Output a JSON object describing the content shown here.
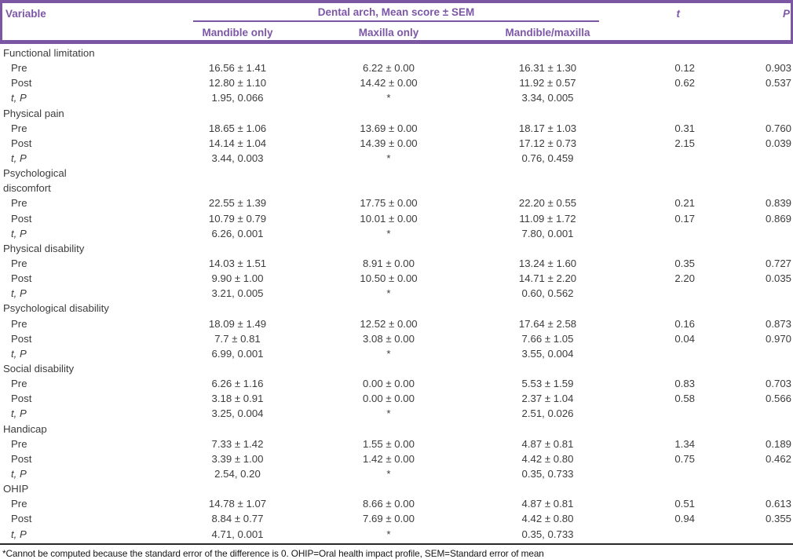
{
  "colors": {
    "accent_purple": "#7b56a2",
    "header_text_purple": "#7d57a7",
    "body_text": "#3c3c3c",
    "footnote_rule": "#2a2a2a"
  },
  "table": {
    "header": {
      "variable": "Variable",
      "span": "Dental arch, Mean score ± SEM",
      "subcols": [
        "Mandible only",
        "Maxilla only",
        "Mandible/maxilla"
      ],
      "t": "t",
      "p": "P"
    },
    "row_labels": {
      "pre": "Pre",
      "post": "Post",
      "tp": "t, P"
    },
    "sections": [
      {
        "label_lines": [
          "Functional limitation"
        ],
        "pre": [
          "16.56 ± 1.41",
          "6.22 ± 0.00",
          "16.31 ± 1.30",
          "0.12",
          "0.903"
        ],
        "post": [
          "12.80 ± 1.10",
          "14.42 ± 0.00",
          "11.92 ± 0.57",
          "0.62",
          "0.537"
        ],
        "tp": [
          "1.95, 0.066",
          "*",
          "3.34, 0.005",
          "",
          ""
        ]
      },
      {
        "label_lines": [
          "Physical pain"
        ],
        "pre": [
          "18.65 ± 1.06",
          "13.69 ± 0.00",
          "18.17 ± 1.03",
          "0.31",
          "0.760"
        ],
        "post": [
          "14.14 ± 1.04",
          "14.39 ± 0.00",
          "17.12 ± 0.73",
          "2.15",
          "0.039"
        ],
        "tp": [
          "3.44, 0.003",
          "*",
          "0.76, 0.459",
          "",
          ""
        ]
      },
      {
        "label_lines": [
          "Psychological",
          "discomfort"
        ],
        "pre": [
          "22.55 ± 1.39",
          "17.75 ± 0.00",
          "22.20 ± 0.55",
          "0.21",
          "0.839"
        ],
        "post": [
          "10.79 ± 0.79",
          "10.01 ± 0.00",
          "11.09 ± 1.72",
          "0.17",
          "0.869"
        ],
        "tp": [
          "6.26, 0.001",
          "*",
          "7.80, 0.001",
          "",
          ""
        ]
      },
      {
        "label_lines": [
          "Physical disability"
        ],
        "pre": [
          "14.03 ± 1.51",
          "8.91 ± 0.00",
          "13.24 ± 1.60",
          "0.35",
          "0.727"
        ],
        "post": [
          "9.90 ± 1.00",
          "10.50 ± 0.00",
          "14.71 ± 2.20",
          "2.20",
          "0.035"
        ],
        "tp": [
          "3.21, 0.005",
          "*",
          "0.60, 0.562",
          "",
          ""
        ]
      },
      {
        "label_lines": [
          "Psychological disability"
        ],
        "pre": [
          "18.09 ± 1.49",
          "12.52 ± 0.00",
          "17.64 ± 2.58",
          "0.16",
          "0.873"
        ],
        "post": [
          "7.7 ± 0.81",
          "3.08 ± 0.00",
          "7.66 ± 1.05",
          "0.04",
          "0.970"
        ],
        "tp": [
          "6.99, 0.001",
          "*",
          "3.55, 0.004",
          "",
          ""
        ]
      },
      {
        "label_lines": [
          "Social disability"
        ],
        "pre": [
          "6.26 ± 1.16",
          "0.00 ± 0.00",
          "5.53 ± 1.59",
          "0.83",
          "0.703"
        ],
        "post": [
          "3.18 ± 0.91",
          "0.00 ± 0.00",
          "2.37 ± 1.04",
          "0.58",
          "0.566"
        ],
        "tp": [
          "3.25, 0.004",
          "*",
          "2.51, 0.026",
          "",
          ""
        ]
      },
      {
        "label_lines": [
          "Handicap"
        ],
        "pre": [
          "7.33 ± 1.42",
          "1.55 ± 0.00",
          "4.87 ± 0.81",
          "1.34",
          "0.189"
        ],
        "post": [
          "3.39 ± 1.00",
          "1.42 ± 0.00",
          "4.42 ± 0.80",
          "0.75",
          "0.462"
        ],
        "tp": [
          "2.54, 0.20",
          "*",
          "0.35, 0.733",
          "",
          ""
        ]
      },
      {
        "label_lines": [
          "OHIP"
        ],
        "pre": [
          "14.78 ± 1.07",
          "8.66 ± 0.00",
          "4.87 ± 0.81",
          "0.51",
          "0.613"
        ],
        "post": [
          "8.84 ± 0.77",
          "7.69 ± 0.00",
          "4.42 ± 0.80",
          "0.94",
          "0.355"
        ],
        "tp": [
          "4.71, 0.001",
          "*",
          "0.35, 0.733",
          "",
          ""
        ]
      }
    ],
    "footnote": "*Cannot be computed because the standard error of the difference is 0. OHIP=Oral health impact profile, SEM=Standard error of mean"
  }
}
